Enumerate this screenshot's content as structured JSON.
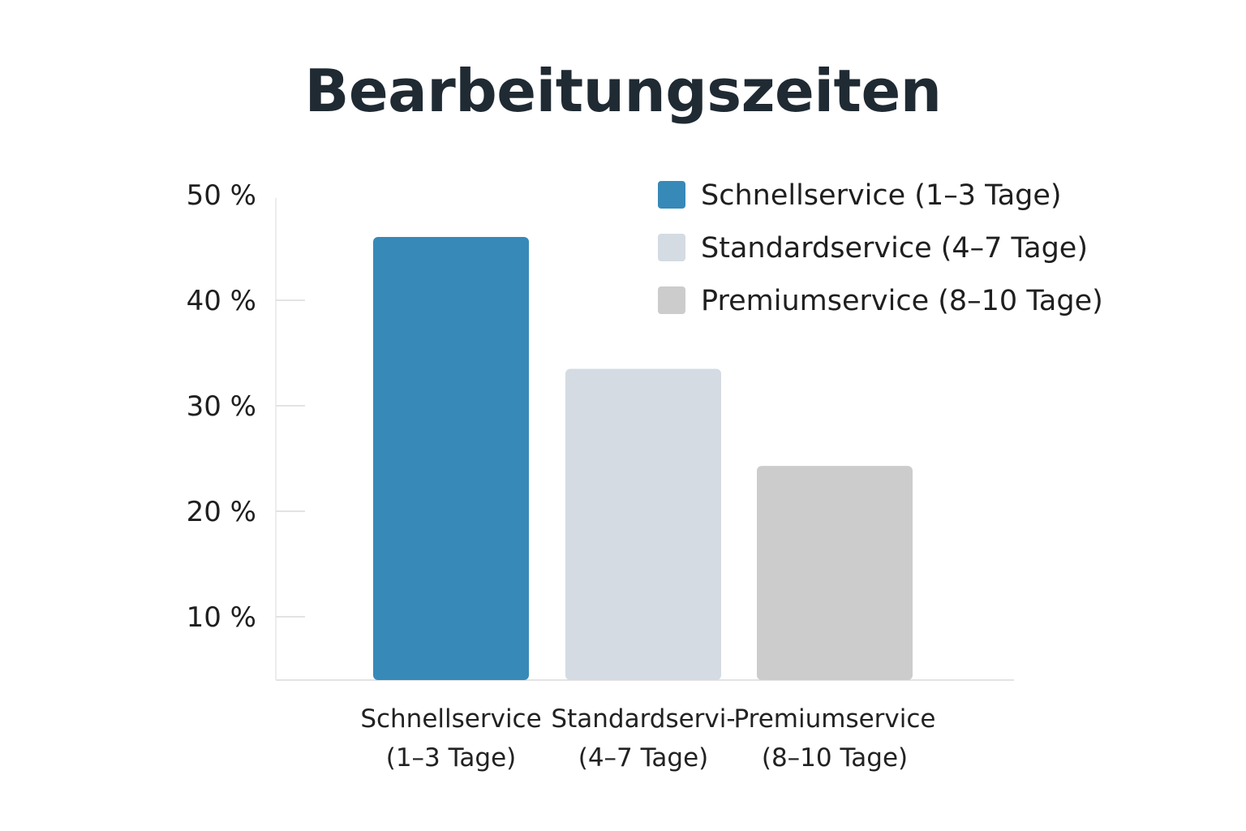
{
  "chart_data": {
    "type": "bar",
    "title": "Bearbeitungszeiten",
    "xlabel": "",
    "ylabel": "",
    "categories": [
      [
        "Schnellservice",
        "(1–3 Tage)"
      ],
      [
        "Standardservi-",
        "(4–7 Tage)"
      ],
      [
        "Premiumservice",
        "(8–10 Tage)"
      ]
    ],
    "values": [
      46,
      33.5,
      24.3
    ],
    "ylim": [
      4,
      50
    ],
    "y_ticks": [
      10,
      20,
      30,
      40,
      50
    ],
    "y_tick_labels": [
      "10 %",
      "20 %",
      "30 %",
      "40 %",
      "50 %"
    ],
    "colors": [
      "#3789b8",
      "#d4dbe2",
      "#cccccc"
    ],
    "legend": {
      "placement": "top-right",
      "entries": [
        {
          "label": "Schnellservice (1–3 Tage)",
          "color": "#3789b8"
        },
        {
          "label": "Standardservice (4–7 Tage)",
          "color": "#d4dbe2"
        },
        {
          "label": "Premiumservice (8–10 Tage)",
          "color": "#cccccc"
        }
      ]
    },
    "grid": false
  }
}
